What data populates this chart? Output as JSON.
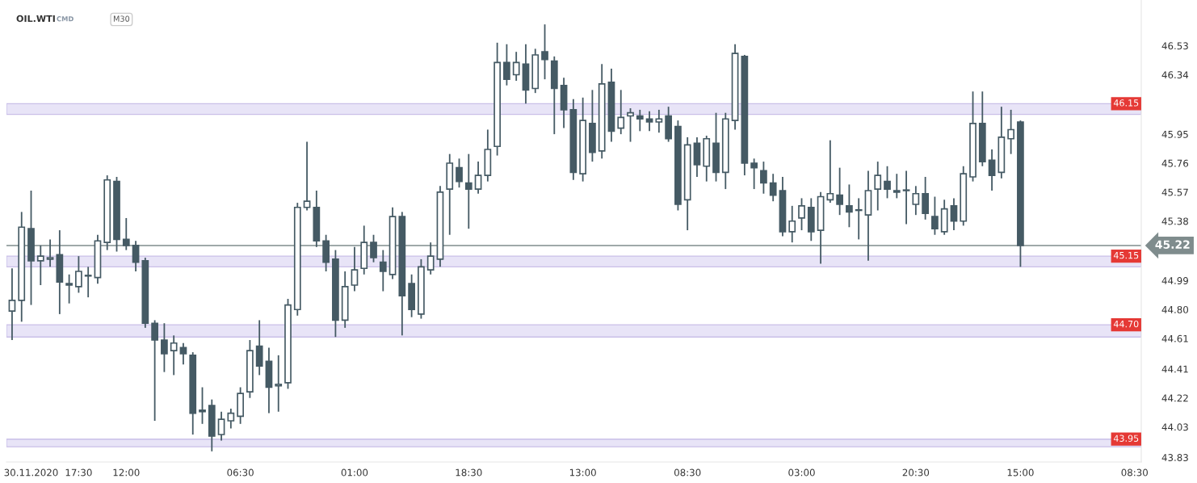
{
  "chart_data": {
    "type": "candlestick",
    "title": "OIL.WTI",
    "subtitle": "CMD",
    "annotations": [
      "M30"
    ],
    "color": "#455a64",
    "categories": [
      null,
      null,
      "30.11.2020",
      null,
      null,
      null,
      null,
      "17:30",
      null,
      null,
      null,
      null,
      "12:00",
      null,
      null,
      null,
      null,
      null,
      null,
      null,
      null,
      null,
      null,
      null,
      "06:30",
      null,
      null,
      null,
      null,
      null,
      null,
      null,
      null,
      null,
      null,
      null,
      "01:00",
      null,
      null,
      null,
      null,
      null,
      null,
      null,
      null,
      null,
      null,
      null,
      "18:30",
      null,
      null,
      null,
      null,
      null,
      null,
      null,
      null,
      null,
      null,
      null,
      "13:00",
      null,
      null,
      null,
      null,
      null,
      null,
      null,
      null,
      null,
      null,
      "08:30",
      null,
      null,
      null,
      null,
      null,
      null,
      null,
      null,
      null,
      null,
      null,
      "03:00",
      null,
      null,
      null,
      null,
      null,
      null,
      null,
      null,
      null,
      null,
      null,
      "20:30",
      null,
      null,
      null,
      null,
      null,
      null,
      null,
      null,
      null,
      null,
      "15:00",
      null,
      null,
      null,
      null,
      null,
      null,
      null,
      null,
      null,
      null,
      null,
      "08:30"
    ],
    "ohlc": [
      [
        44.79,
        45.07,
        44.6,
        44.86
      ],
      [
        44.86,
        45.44,
        44.72,
        45.34
      ],
      [
        45.33,
        45.58,
        44.83,
        45.12
      ],
      [
        45.12,
        45.22,
        44.96,
        45.15
      ],
      [
        45.13,
        45.26,
        45.08,
        45.14
      ],
      [
        45.16,
        45.32,
        44.77,
        44.98
      ],
      [
        44.97,
        45.03,
        44.84,
        44.96
      ],
      [
        44.95,
        45.15,
        44.91,
        45.05
      ],
      [
        45.02,
        45.08,
        44.88,
        45.02
      ],
      [
        45.01,
        45.29,
        44.97,
        45.25
      ],
      [
        45.24,
        45.68,
        45.19,
        45.65
      ],
      [
        45.64,
        45.67,
        45.18,
        45.26
      ],
      [
        45.26,
        45.4,
        45.19,
        45.22
      ],
      [
        45.22,
        45.25,
        45.05,
        45.11
      ],
      [
        45.12,
        45.14,
        44.68,
        44.71
      ],
      [
        44.71,
        44.73,
        44.07,
        44.6
      ],
      [
        44.6,
        44.71,
        44.39,
        44.51
      ],
      [
        44.53,
        44.63,
        44.37,
        44.58
      ],
      [
        44.55,
        44.58,
        44.44,
        44.51
      ],
      [
        44.5,
        44.52,
        43.98,
        44.12
      ],
      [
        44.14,
        44.29,
        44.05,
        44.13
      ],
      [
        44.17,
        44.21,
        43.87,
        43.97
      ],
      [
        43.98,
        44.13,
        43.94,
        44.08
      ],
      [
        44.07,
        44.15,
        44.02,
        44.12
      ],
      [
        44.1,
        44.29,
        44.05,
        44.25
      ],
      [
        44.26,
        44.6,
        44.22,
        44.53
      ],
      [
        44.56,
        44.73,
        44.37,
        44.43
      ],
      [
        44.46,
        44.55,
        44.12,
        44.29
      ],
      [
        44.3,
        44.5,
        44.13,
        44.31
      ],
      [
        44.32,
        44.87,
        44.28,
        44.83
      ],
      [
        44.8,
        45.5,
        44.76,
        45.47
      ],
      [
        45.47,
        45.9,
        45.45,
        45.51
      ],
      [
        45.47,
        45.58,
        45.21,
        45.25
      ],
      [
        45.25,
        45.29,
        45.05,
        45.11
      ],
      [
        45.13,
        45.19,
        44.62,
        44.73
      ],
      [
        44.73,
        45.05,
        44.68,
        44.95
      ],
      [
        44.96,
        45.21,
        44.92,
        45.06
      ],
      [
        45.07,
        45.35,
        45.03,
        45.24
      ],
      [
        45.24,
        45.29,
        45.11,
        45.14
      ],
      [
        45.11,
        45.19,
        44.92,
        45.05
      ],
      [
        45.03,
        45.47,
        45.0,
        45.41
      ],
      [
        45.41,
        45.44,
        44.63,
        44.89
      ],
      [
        44.97,
        45.03,
        44.75,
        44.8
      ],
      [
        44.77,
        45.13,
        44.74,
        45.08
      ],
      [
        45.06,
        45.24,
        45.03,
        45.15
      ],
      [
        45.13,
        45.61,
        45.08,
        45.57
      ],
      [
        45.59,
        45.82,
        45.29,
        45.76
      ],
      [
        45.73,
        45.79,
        45.6,
        45.64
      ],
      [
        45.63,
        45.82,
        45.33,
        45.59
      ],
      [
        45.59,
        45.77,
        45.56,
        45.68
      ],
      [
        45.68,
        45.98,
        45.64,
        45.85
      ],
      [
        45.87,
        46.55,
        45.81,
        46.42
      ],
      [
        46.42,
        46.54,
        46.27,
        46.31
      ],
      [
        46.34,
        46.49,
        46.3,
        46.42
      ],
      [
        46.41,
        46.54,
        46.15,
        46.24
      ],
      [
        46.25,
        46.51,
        46.22,
        46.47
      ],
      [
        46.49,
        46.67,
        46.31,
        46.44
      ],
      [
        46.43,
        46.46,
        45.95,
        46.25
      ],
      [
        46.27,
        46.32,
        45.99,
        46.11
      ],
      [
        46.11,
        46.18,
        45.65,
        45.7
      ],
      [
        45.69,
        46.19,
        45.64,
        46.04
      ],
      [
        46.02,
        46.24,
        45.77,
        45.83
      ],
      [
        45.84,
        46.41,
        45.79,
        46.28
      ],
      [
        46.29,
        46.38,
        45.9,
        45.97
      ],
      [
        45.99,
        46.24,
        45.95,
        46.06
      ],
      [
        46.07,
        46.12,
        45.9,
        46.09
      ],
      [
        46.07,
        46.11,
        45.97,
        46.05
      ],
      [
        46.05,
        46.1,
        45.97,
        46.03
      ],
      [
        46.03,
        46.11,
        45.96,
        46.05
      ],
      [
        46.07,
        46.13,
        45.9,
        45.92
      ],
      [
        46.0,
        46.04,
        45.45,
        45.49
      ],
      [
        45.52,
        45.93,
        45.32,
        45.88
      ],
      [
        45.89,
        45.93,
        45.67,
        45.75
      ],
      [
        45.74,
        45.94,
        45.64,
        45.92
      ],
      [
        45.89,
        46.09,
        45.64,
        45.7
      ],
      [
        45.7,
        46.09,
        45.59,
        46.05
      ],
      [
        46.04,
        46.54,
        45.98,
        46.48
      ],
      [
        46.46,
        46.47,
        45.68,
        45.76
      ],
      [
        45.76,
        45.79,
        45.59,
        45.73
      ],
      [
        45.71,
        45.77,
        45.56,
        45.63
      ],
      [
        45.63,
        45.69,
        45.51,
        45.55
      ],
      [
        45.58,
        45.67,
        45.28,
        45.31
      ],
      [
        45.31,
        45.48,
        45.24,
        45.38
      ],
      [
        45.4,
        45.53,
        45.32,
        45.48
      ],
      [
        45.47,
        45.53,
        45.25,
        45.31
      ],
      [
        45.32,
        45.57,
        45.1,
        45.54
      ],
      [
        45.52,
        45.91,
        45.5,
        45.56
      ],
      [
        45.55,
        45.73,
        45.42,
        45.49
      ],
      [
        45.48,
        45.62,
        45.34,
        45.44
      ],
      [
        45.45,
        45.53,
        45.26,
        45.45
      ],
      [
        45.42,
        45.71,
        45.12,
        45.58
      ],
      [
        45.59,
        45.77,
        45.45,
        45.68
      ],
      [
        45.64,
        45.74,
        45.53,
        45.59
      ],
      [
        45.58,
        45.69,
        45.53,
        45.57
      ],
      [
        45.58,
        45.71,
        45.36,
        45.58
      ],
      [
        45.49,
        45.61,
        45.42,
        45.56
      ],
      [
        45.56,
        45.67,
        45.39,
        45.43
      ],
      [
        45.41,
        45.54,
        45.29,
        45.33
      ],
      [
        45.31,
        45.52,
        45.29,
        45.46
      ],
      [
        45.48,
        45.53,
        45.32,
        45.38
      ],
      [
        45.38,
        45.74,
        45.35,
        45.69
      ],
      [
        45.67,
        46.23,
        45.64,
        46.02
      ],
      [
        46.02,
        46.23,
        45.74,
        45.77
      ],
      [
        45.78,
        45.85,
        45.58,
        45.68
      ],
      [
        45.7,
        46.13,
        45.66,
        45.93
      ],
      [
        45.92,
        46.11,
        45.82,
        45.98
      ],
      [
        46.03,
        46.04,
        45.08,
        45.22
      ],
      null,
      null,
      null,
      null,
      null,
      null,
      null,
      null,
      null,
      null,
      null,
      null
    ],
    "ylim": [
      43.8,
      46.83
    ],
    "yticks": [
      43.83,
      44.03,
      44.22,
      44.41,
      44.61,
      {
        "value": 44.8,
        "label": "44.80"
      },
      44.99,
      45.38,
      45.57,
      45.76,
      45.95,
      46.34,
      46.53
    ],
    "bands": [
      {
        "axis": "y",
        "from": 46.08,
        "to": 46.15,
        "label": "46.15",
        "color": "#e8e4f7"
      },
      {
        "axis": "y",
        "from": 45.08,
        "to": 45.15,
        "label": "45.15",
        "color": "#e8e4f7"
      },
      {
        "axis": "y",
        "from": 44.62,
        "to": 44.7,
        "label": "44.70",
        "color": "#e8e4f7"
      },
      {
        "axis": "y",
        "from": 43.9,
        "to": 43.95,
        "label": "43.95",
        "color": "#e8e4f7"
      }
    ],
    "ref_lines": [
      {
        "axis": "y",
        "value": 45.22,
        "label": "45.22",
        "color": "#7f8c8d"
      }
    ],
    "grid": false
  }
}
